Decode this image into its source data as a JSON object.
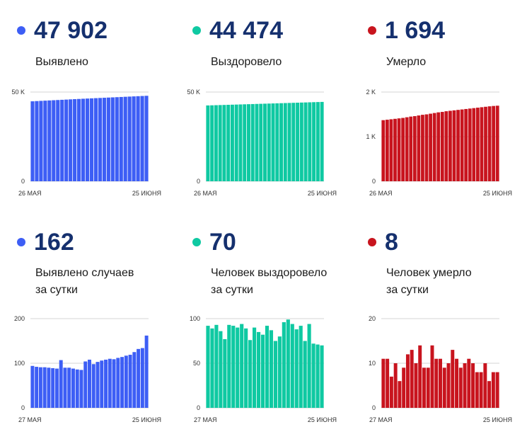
{
  "colors": {
    "blue": "#3d5ef5",
    "teal": "#0fc9a2",
    "red": "#c8141e",
    "number": "#15306e"
  },
  "cumulative": [
    {
      "value": "47 902",
      "label": "Выявлено",
      "color": "#3d5ef5"
    },
    {
      "value": "44 474",
      "label": "Выздоровело",
      "color": "#0fc9a2"
    },
    {
      "value": "1 694",
      "label": "Умерло",
      "color": "#c8141e"
    }
  ],
  "daily": [
    {
      "value": "162",
      "label_line1": "Выявлено случаев",
      "label_line2": "за сутки",
      "color": "#3d5ef5"
    },
    {
      "value": "70",
      "label_line1": "Человек выздоровело",
      "label_line2": "за сутки",
      "color": "#0fc9a2"
    },
    {
      "value": "8",
      "label_line1": "Человек умерло",
      "label_line2": "за сутки",
      "color": "#c8141e"
    }
  ],
  "chart_data": [
    {
      "type": "bar",
      "color": "#3d5ef5",
      "ylim": [
        0,
        50000
      ],
      "yticks": [
        0,
        50000
      ],
      "ytick_labels": [
        "0",
        "50 K"
      ],
      "xtick_labels": [
        "26 МАЯ",
        "25 ИЮНЯ"
      ],
      "values": [
        44810,
        44940,
        45060,
        45180,
        45300,
        45420,
        45540,
        45660,
        45780,
        45900,
        46020,
        46140,
        46250,
        46360,
        46470,
        46580,
        46690,
        46800,
        46910,
        47020,
        47130,
        47240,
        47350,
        47460,
        47570,
        47680,
        47790,
        47902
      ]
    },
    {
      "type": "bar",
      "color": "#0fc9a2",
      "ylim": [
        0,
        50000
      ],
      "yticks": [
        0,
        50000
      ],
      "ytick_labels": [
        "0",
        "50 K"
      ],
      "xtick_labels": [
        "26 МАЯ",
        "25 ИЮНЯ"
      ],
      "values": [
        42500,
        42570,
        42640,
        42710,
        42780,
        42850,
        42920,
        42990,
        43060,
        43130,
        43200,
        43270,
        43340,
        43410,
        43480,
        43550,
        43620,
        43690,
        43760,
        43830,
        43900,
        43970,
        44040,
        44110,
        44180,
        44250,
        44330,
        44400,
        44474
      ]
    },
    {
      "type": "bar",
      "color": "#c8141e",
      "ylim": [
        0,
        2000
      ],
      "yticks": [
        0,
        1000,
        2000
      ],
      "ytick_labels": [
        "0",
        "1 K",
        "2 K"
      ],
      "xtick_labels": [
        "26 МАЯ",
        "25 ИЮНЯ"
      ],
      "values": [
        1370,
        1380,
        1390,
        1400,
        1410,
        1420,
        1435,
        1450,
        1460,
        1475,
        1490,
        1500,
        1515,
        1530,
        1545,
        1555,
        1570,
        1580,
        1590,
        1600,
        1610,
        1620,
        1630,
        1640,
        1650,
        1660,
        1670,
        1680,
        1688,
        1694
      ]
    },
    {
      "type": "bar",
      "color": "#3d5ef5",
      "ylim": [
        0,
        200
      ],
      "yticks": [
        0,
        100,
        200
      ],
      "ytick_labels": [
        "0",
        "100",
        "200"
      ],
      "xtick_labels": [
        "27 МАЯ",
        "25 ИЮНЯ"
      ],
      "values": [
        94,
        92,
        91,
        91,
        90,
        89,
        88,
        107,
        90,
        90,
        88,
        86,
        85,
        104,
        108,
        98,
        103,
        106,
        108,
        110,
        109,
        112,
        114,
        117,
        119,
        125,
        132,
        134,
        162
      ]
    },
    {
      "type": "bar",
      "color": "#0fc9a2",
      "ylim": [
        0,
        100
      ],
      "yticks": [
        0,
        50,
        100
      ],
      "ytick_labels": [
        "0",
        "50",
        "100"
      ],
      "xtick_labels": [
        "27 МАЯ",
        "25 ИЮНЯ"
      ],
      "values": [
        92,
        89,
        93,
        86,
        77,
        93,
        92,
        90,
        94,
        89,
        76,
        90,
        85,
        82,
        92,
        87,
        75,
        80,
        96,
        99,
        94,
        88,
        92,
        75,
        94,
        72,
        71,
        70
      ]
    },
    {
      "type": "bar",
      "color": "#c8141e",
      "ylim": [
        0,
        20
      ],
      "yticks": [
        0,
        10,
        20
      ],
      "ytick_labels": [
        "0",
        "10",
        "20"
      ],
      "xtick_labels": [
        "27 МАЯ",
        "25 ИЮНЯ"
      ],
      "values": [
        11,
        11,
        7,
        10,
        6,
        9,
        12,
        13,
        10,
        14,
        9,
        9,
        14,
        11,
        11,
        9,
        10,
        13,
        11,
        9,
        10,
        11,
        10,
        8,
        8,
        10,
        6,
        8,
        8
      ]
    }
  ]
}
